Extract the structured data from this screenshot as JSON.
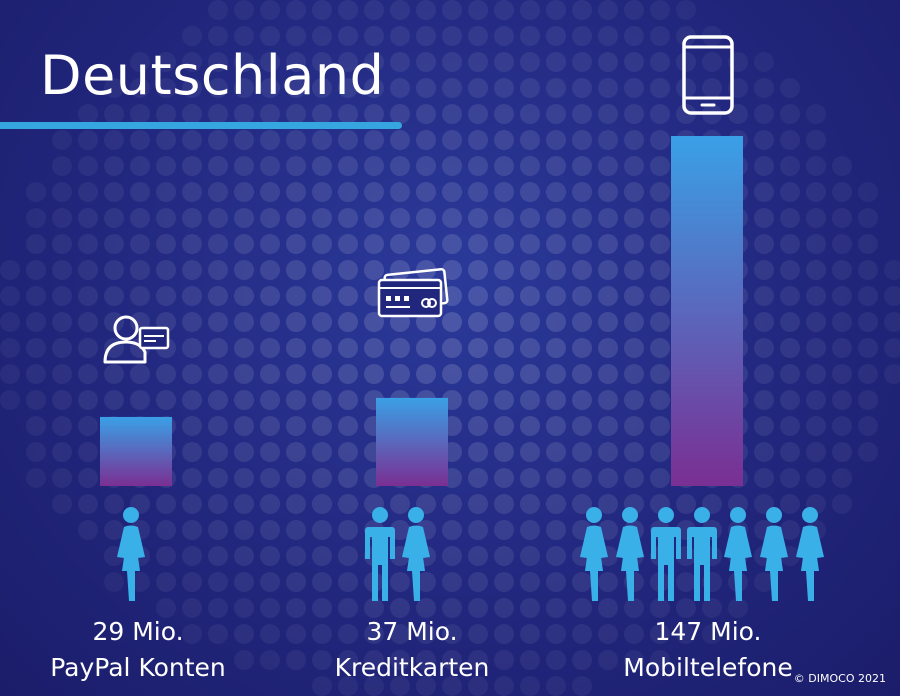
{
  "title": "Deutschland",
  "copyright": "© DIMOCO 2021",
  "colors": {
    "accent": "#35a6e0",
    "bar_top": "#3aa0e6",
    "bar_bottom": "#7a2f93",
    "people": "#3ab0e8"
  },
  "chart_data": {
    "type": "bar",
    "title": "Deutschland",
    "categories": [
      "PayPal Konten",
      "Kreditkarten",
      "Mobiltelefone"
    ],
    "values": [
      29,
      37,
      147
    ],
    "value_labels": [
      "29 Mio.",
      "37 Mio.",
      "147 Mio."
    ],
    "unit": "Mio.",
    "icons": [
      "person-card-icon",
      "credit-cards-icon",
      "smartphone-icon"
    ],
    "people": [
      [
        "female"
      ],
      [
        "male",
        "female"
      ],
      [
        "female",
        "female",
        "male",
        "male",
        "female",
        "female",
        "female"
      ]
    ],
    "ylim": [
      0,
      147
    ],
    "grid": false,
    "legend": "none"
  }
}
